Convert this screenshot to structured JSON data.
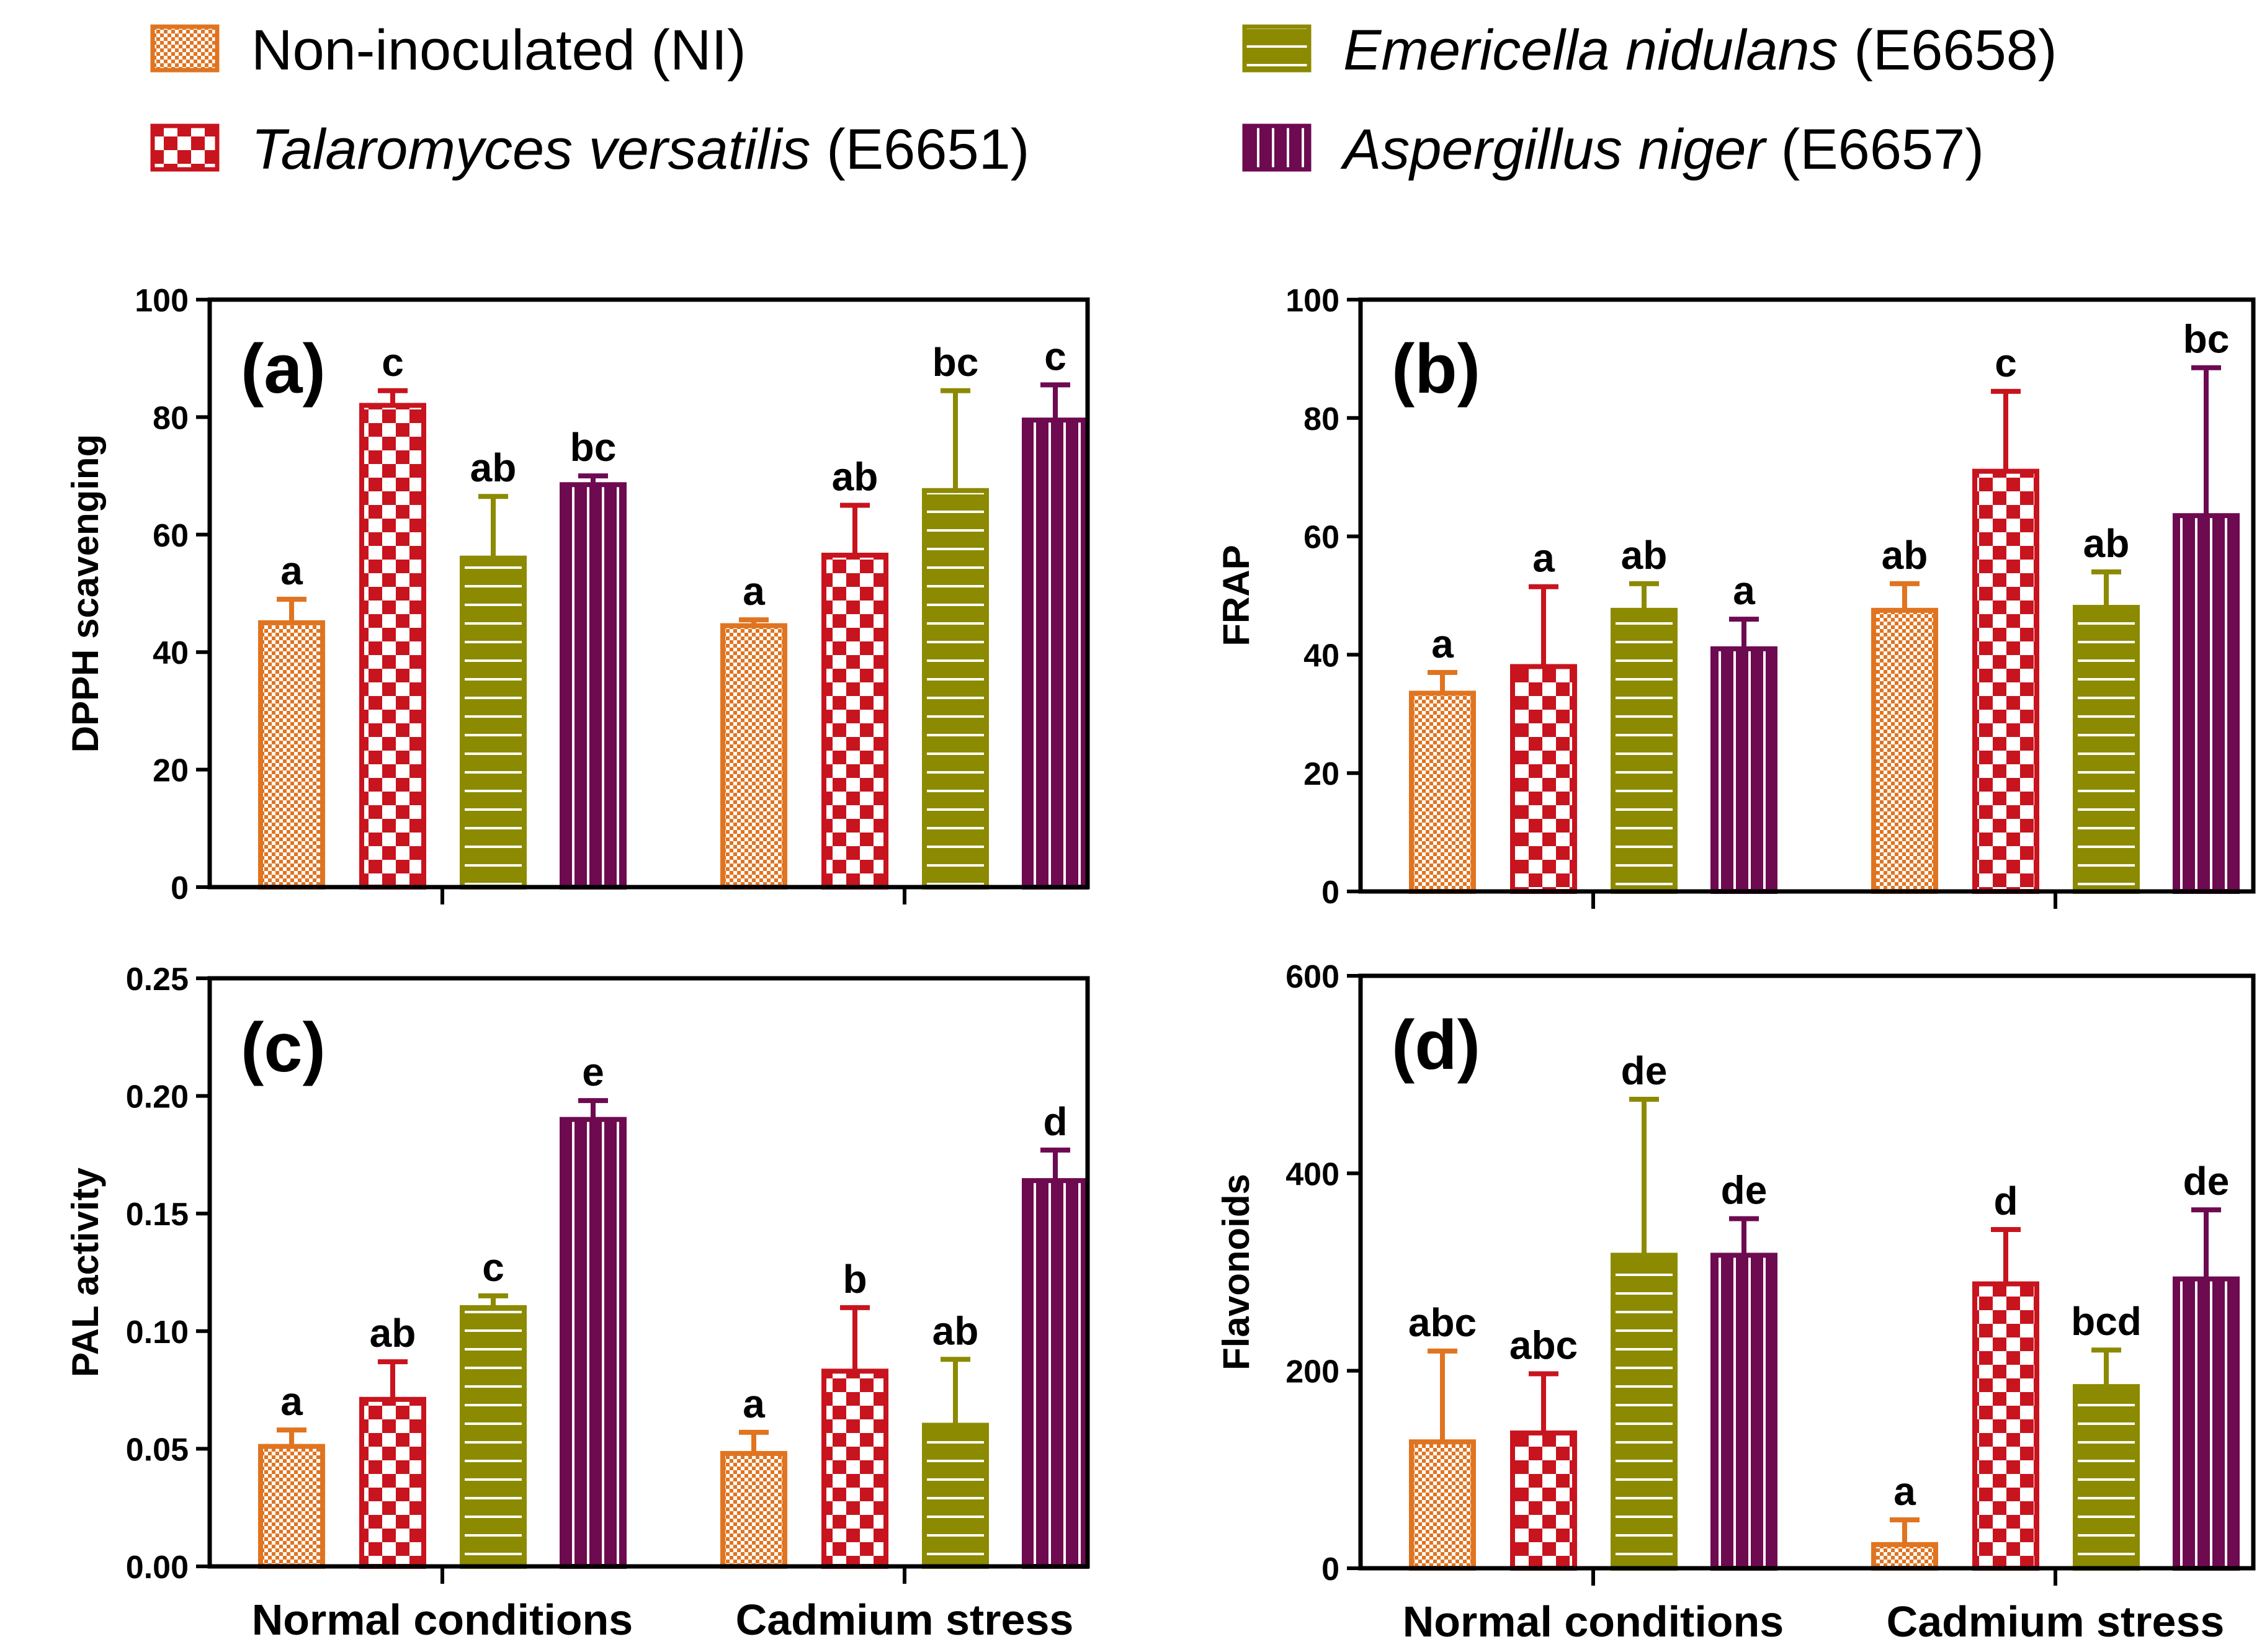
{
  "colors": {
    "NI": "#E07420",
    "E6651": "#C8141E",
    "E6658": "#8C8A00",
    "E6657": "#6E0A50"
  },
  "legend": [
    {
      "key": "NI",
      "name": "Non-inoculated",
      "suffix": " (NI)",
      "italic": false,
      "pattern": "pat-NI"
    },
    {
      "key": "E6658",
      "name": "Emericella nidulans",
      "suffix": " (E6658)",
      "italic": true,
      "pattern": "pat-E6658"
    },
    {
      "key": "E6651",
      "name": "Talaromyces versatilis",
      "suffix": " (E6651)",
      "italic": true,
      "pattern": "pat-E6651"
    },
    {
      "key": "E6657",
      "name": "Aspergillus niger",
      "suffix": " (E6657)",
      "italic": true,
      "pattern": "pat-E6657"
    }
  ],
  "chart_data": [
    {
      "type": "bar",
      "panel": "(a)",
      "title": "",
      "xlabel": "",
      "ylabel": "DPPH scavenging",
      "ylim": [
        0,
        100
      ],
      "yticks": [
        0,
        20,
        40,
        60,
        80,
        100
      ],
      "ytick_labels": [
        "0",
        "20",
        "40",
        "60",
        "80",
        "100"
      ],
      "categories": [
        "Normal conditions",
        "Cadmium stress"
      ],
      "show_xlabels": false,
      "series": [
        {
          "key": "NI",
          "name": "Non-inoculated (NI)",
          "values": [
            45,
            44.5
          ],
          "errors": [
            4,
            1
          ],
          "letters": [
            "a",
            "a"
          ]
        },
        {
          "key": "E6651",
          "name": "Talaromyces versatilis (E6651)",
          "values": [
            82,
            56.5
          ],
          "errors": [
            2.5,
            8.5
          ],
          "letters": [
            "c",
            "ab"
          ]
        },
        {
          "key": "E6658",
          "name": "Emericella nidulans (E6658)",
          "values": [
            56,
            67.5
          ],
          "errors": [
            10.5,
            17
          ],
          "letters": [
            "ab",
            "bc"
          ]
        },
        {
          "key": "E6657",
          "name": "Aspergillus niger (E6657)",
          "values": [
            68.5,
            79.5
          ],
          "errors": [
            1.5,
            6
          ],
          "letters": [
            "bc",
            "c"
          ]
        }
      ]
    },
    {
      "type": "bar",
      "panel": "(b)",
      "title": "",
      "xlabel": "",
      "ylabel": "FRAP",
      "ylim": [
        0,
        100
      ],
      "yticks": [
        0,
        20,
        40,
        60,
        80,
        100
      ],
      "ytick_labels": [
        "0",
        "20",
        "40",
        "60",
        "80",
        "100"
      ],
      "categories": [
        "Normal conditions",
        "Cadmium stress"
      ],
      "show_xlabels": false,
      "series": [
        {
          "key": "NI",
          "name": "Non-inoculated (NI)",
          "values": [
            33.5,
            47.5
          ],
          "errors": [
            3.5,
            4.5
          ],
          "letters": [
            "a",
            "ab"
          ]
        },
        {
          "key": "E6651",
          "name": "Talaromyces versatilis (E6651)",
          "values": [
            38,
            71
          ],
          "errors": [
            13.5,
            13.5
          ],
          "letters": [
            "a",
            "c"
          ]
        },
        {
          "key": "E6658",
          "name": "Emericella nidulans (E6658)",
          "values": [
            47.5,
            48
          ],
          "errors": [
            4.5,
            6
          ],
          "letters": [
            "ab",
            "ab"
          ]
        },
        {
          "key": "E6657",
          "name": "Aspergillus niger (E6657)",
          "values": [
            41,
            63.5
          ],
          "errors": [
            5,
            25
          ],
          "letters": [
            "a",
            "bc"
          ]
        }
      ]
    },
    {
      "type": "bar",
      "panel": "(c)",
      "title": "",
      "xlabel": "",
      "ylabel": "PAL activity",
      "ylim": [
        0,
        0.25
      ],
      "yticks": [
        0,
        0.05,
        0.1,
        0.15,
        0.2,
        0.25
      ],
      "ytick_labels": [
        "0.00",
        "0.05",
        "0.10",
        "0.15",
        "0.20",
        "0.25"
      ],
      "categories": [
        "Normal conditions",
        "Cadmium stress"
      ],
      "show_xlabels": true,
      "series": [
        {
          "key": "NI",
          "name": "Non-inoculated (NI)",
          "values": [
            0.051,
            0.048
          ],
          "errors": [
            0.007,
            0.009
          ],
          "letters": [
            "a",
            "a"
          ]
        },
        {
          "key": "E6651",
          "name": "Talaromyces versatilis (E6651)",
          "values": [
            0.071,
            0.083
          ],
          "errors": [
            0.016,
            0.027
          ],
          "letters": [
            "ab",
            "b"
          ]
        },
        {
          "key": "E6658",
          "name": "Emericella nidulans (E6658)",
          "values": [
            0.11,
            0.06
          ],
          "errors": [
            0.005,
            0.028
          ],
          "letters": [
            "c",
            "ab"
          ]
        },
        {
          "key": "E6657",
          "name": "Aspergillus niger (E6657)",
          "values": [
            0.19,
            0.164
          ],
          "errors": [
            0.008,
            0.013
          ],
          "letters": [
            "e",
            "d"
          ]
        }
      ]
    },
    {
      "type": "bar",
      "panel": "(d)",
      "title": "",
      "xlabel": "",
      "ylabel": "Flavonoids",
      "ylim": [
        0,
        600
      ],
      "yticks": [
        0,
        200,
        400,
        600
      ],
      "ytick_labels": [
        "0",
        "200",
        "400",
        "600"
      ],
      "categories": [
        "Normal conditions",
        "Cadmium stress"
      ],
      "show_xlabels": true,
      "series": [
        {
          "key": "NI",
          "name": "Non-inoculated (NI)",
          "values": [
            128,
            24
          ],
          "errors": [
            92,
            25
          ],
          "letters": [
            "abc",
            "a"
          ]
        },
        {
          "key": "E6651",
          "name": "Talaromyces versatilis (E6651)",
          "values": [
            137,
            288
          ],
          "errors": [
            60,
            55
          ],
          "letters": [
            "abc",
            "d"
          ]
        },
        {
          "key": "E6658",
          "name": "Emericella nidulans (E6658)",
          "values": [
            317,
            184
          ],
          "errors": [
            158,
            37
          ],
          "letters": [
            "de",
            "bcd"
          ]
        },
        {
          "key": "E6657",
          "name": "Aspergillus niger (E6657)",
          "values": [
            317,
            293
          ],
          "errors": [
            37,
            70
          ],
          "letters": [
            "de",
            "de"
          ]
        }
      ]
    }
  ]
}
